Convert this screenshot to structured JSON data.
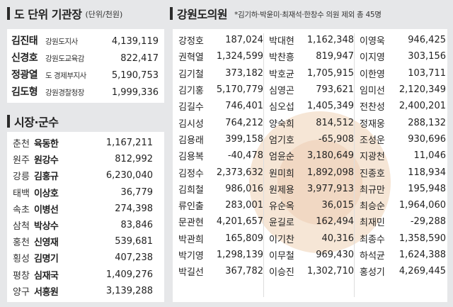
{
  "agency": {
    "title": "도 단위 기관장",
    "unit": "(단위/천원)",
    "rows": [
      {
        "name": "김진태",
        "position": "강원도지사",
        "value": "4,139,119"
      },
      {
        "name": "신경호",
        "position": "강원도교육감",
        "value": "822,417"
      },
      {
        "name": "정광열",
        "position": "도 경제부지사",
        "value": "5,190,753"
      },
      {
        "name": "김도형",
        "position": "강원경찰청장",
        "value": "1,999,336"
      }
    ]
  },
  "mayors": {
    "title": "시장·군수",
    "rows": [
      {
        "region": "춘천",
        "name": "육동한",
        "value": "1,167,211"
      },
      {
        "region": "원주",
        "name": "원강수",
        "value": "812,992"
      },
      {
        "region": "강릉",
        "name": "김홍규",
        "value": "6,230,040"
      },
      {
        "region": "태백",
        "name": "이상호",
        "value": "36,779"
      },
      {
        "region": "속초",
        "name": "이병선",
        "value": "274,398"
      },
      {
        "region": "삼척",
        "name": "박상수",
        "value": "83,846"
      },
      {
        "region": "홍천",
        "name": "신영재",
        "value": "539,681"
      },
      {
        "region": "횡성",
        "name": "김명기",
        "value": "407,238"
      },
      {
        "region": "평창",
        "name": "심재국",
        "value": "1,409,276"
      },
      {
        "region": "양구",
        "name": "서흥원",
        "value": "3,139,288"
      }
    ]
  },
  "council": {
    "title": "강원도의원",
    "note": "*김기하·박윤미·최재석·한창수 의원 제외 총 45명",
    "col1": [
      {
        "name": "강정호",
        "value": "187,024"
      },
      {
        "name": "권혁열",
        "value": "1,324,599"
      },
      {
        "name": "김기철",
        "value": "373,182"
      },
      {
        "name": "김기홍",
        "value": "5,170,779"
      },
      {
        "name": "김길수",
        "value": "746,401"
      },
      {
        "name": "김시성",
        "value": "764,212"
      },
      {
        "name": "김용래",
        "value": "399,158"
      },
      {
        "name": "김용복",
        "value": "-40,478"
      },
      {
        "name": "김정수",
        "value": "2,373,632"
      },
      {
        "name": "김희철",
        "value": "986,016"
      },
      {
        "name": "류인출",
        "value": "283,001"
      },
      {
        "name": "문관현",
        "value": "4,201,657"
      },
      {
        "name": "박관희",
        "value": "165,809"
      },
      {
        "name": "박기영",
        "value": "1,298,139"
      },
      {
        "name": "박길선",
        "value": "367,782"
      }
    ],
    "col2": [
      {
        "name": "박대현",
        "value": "1,162,348"
      },
      {
        "name": "박찬흥",
        "value": "819,947"
      },
      {
        "name": "박호균",
        "value": "1,705,915"
      },
      {
        "name": "심영곤",
        "value": "793,621"
      },
      {
        "name": "심오섭",
        "value": "1,405,349"
      },
      {
        "name": "양숙희",
        "value": "814,512"
      },
      {
        "name": "엄기호",
        "value": "-65,908"
      },
      {
        "name": "엄윤순",
        "value": "3,180,649"
      },
      {
        "name": "원미희",
        "value": "1,892,098"
      },
      {
        "name": "원제용",
        "value": "3,977,913"
      },
      {
        "name": "유순옥",
        "value": "36,015"
      },
      {
        "name": "윤길로",
        "value": "162,494"
      },
      {
        "name": "이기찬",
        "value": "40,316"
      },
      {
        "name": "이무철",
        "value": "969,430"
      },
      {
        "name": "이승진",
        "value": "1,302,710"
      }
    ],
    "col3": [
      {
        "name": "이영욱",
        "value": "946,425"
      },
      {
        "name": "이지영",
        "value": "303,156"
      },
      {
        "name": "이한영",
        "value": "103,711"
      },
      {
        "name": "임미선",
        "value": "2,120,349"
      },
      {
        "name": "전찬성",
        "value": "2,400,201"
      },
      {
        "name": "정재웅",
        "value": "288,132"
      },
      {
        "name": "조성운",
        "value": "930,696"
      },
      {
        "name": "지광천",
        "value": "11,046"
      },
      {
        "name": "진종호",
        "value": "118,934"
      },
      {
        "name": "최규만",
        "value": "195,948"
      },
      {
        "name": "최승순",
        "value": "1,964,060"
      },
      {
        "name": "최재민",
        "value": "-29,288"
      },
      {
        "name": "최종수",
        "value": "1,358,590"
      },
      {
        "name": "하석균",
        "value": "1,624,388"
      },
      {
        "name": "홍성기",
        "value": "4,269,445"
      }
    ]
  }
}
